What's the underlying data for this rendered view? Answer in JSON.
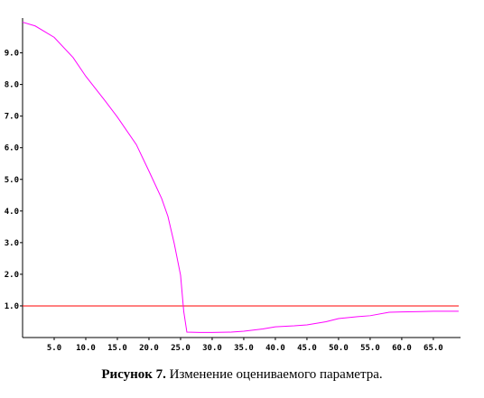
{
  "chart_data": {
    "type": "line",
    "caption": {
      "label": "Рисунок 7.",
      "text": "Изменение оцениваемого параметра."
    },
    "x": [
      0,
      2,
      5,
      8,
      10,
      13,
      15,
      18,
      20,
      22,
      23,
      24,
      25,
      25.5,
      26,
      28,
      30,
      33,
      35,
      38,
      40,
      43,
      45,
      48,
      50,
      53,
      55,
      58,
      60,
      63,
      65,
      69
    ],
    "series": [
      {
        "color": "#ff00ff",
        "values": [
          9.97,
          9.85,
          9.49,
          8.85,
          8.26,
          7.5,
          6.97,
          6.1,
          5.26,
          4.4,
          3.83,
          2.97,
          1.97,
          0.83,
          0.17,
          0.16,
          0.16,
          0.17,
          0.2,
          0.27,
          0.34,
          0.37,
          0.4,
          0.5,
          0.6,
          0.66,
          0.69,
          0.8,
          0.81,
          0.82,
          0.83,
          0.83
        ]
      }
    ],
    "reference_line": {
      "value": 1,
      "color": "#ff0000"
    },
    "xlim": [
      0,
      69.3
    ],
    "ylim": [
      0,
      10.1
    ],
    "xticks": [
      {
        "value": 5,
        "label": "5.0"
      },
      {
        "value": 10,
        "label": "10.0"
      },
      {
        "value": 15,
        "label": "15.0"
      },
      {
        "value": 20,
        "label": "20.0"
      },
      {
        "value": 25,
        "label": "25.0"
      },
      {
        "value": 30,
        "label": "30.0"
      },
      {
        "value": 35,
        "label": "35.0"
      },
      {
        "value": 40,
        "label": "40.0"
      },
      {
        "value": 45,
        "label": "45.0"
      },
      {
        "value": 50,
        "label": "50.0"
      },
      {
        "value": 55,
        "label": "55.0"
      },
      {
        "value": 60,
        "label": "60.0"
      },
      {
        "value": 65,
        "label": "65.0"
      }
    ],
    "yticks": [
      {
        "value": 1,
        "label": "1.0"
      },
      {
        "value": 2,
        "label": "2.0"
      },
      {
        "value": 3,
        "label": "3.0"
      },
      {
        "value": 4,
        "label": "4.0"
      },
      {
        "value": 5,
        "label": "5.0"
      },
      {
        "value": 6,
        "label": "6.0"
      },
      {
        "value": 7,
        "label": "7.0"
      },
      {
        "value": 8,
        "label": "8.0"
      },
      {
        "value": 9,
        "label": "9.0"
      }
    ]
  }
}
